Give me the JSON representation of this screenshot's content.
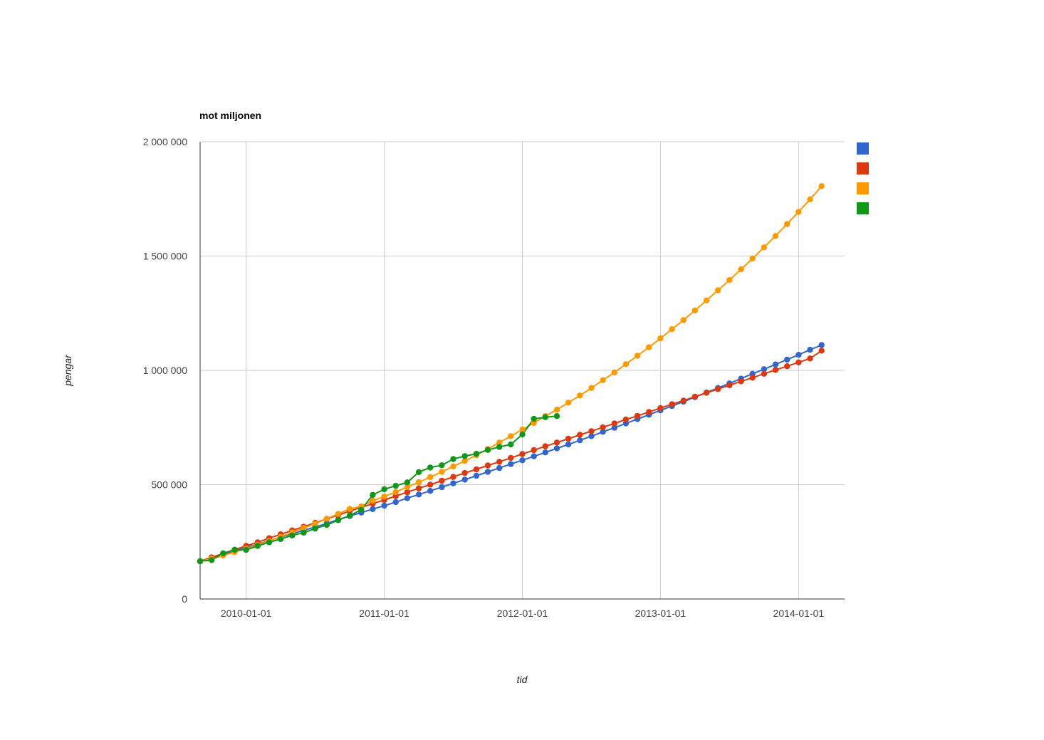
{
  "chart_data": {
    "type": "line",
    "title": "mot miljonen",
    "xlabel": "tid",
    "ylabel": "pengar",
    "x_tick_labels": [
      "2010-01-01",
      "2011-01-01",
      "2012-01-01",
      "2013-01-01",
      "2014-01-01"
    ],
    "y_tick_labels": [
      "0",
      "500 000",
      "1 000 000",
      "1 500 000",
      "2 000 000"
    ],
    "xlim": [
      "2009-09-01",
      "2014-05-01"
    ],
    "ylim": [
      0,
      2000000
    ],
    "grid": true,
    "legend_position": "right",
    "series": [
      {
        "color": "#3366cc",
        "x_start": "2009-09-01",
        "step_months": 1,
        "values": [
          165000,
          180000,
          195000,
          210000,
          225000,
          240000,
          255000,
          270000,
          285000,
          300000,
          315000,
          330000,
          347000,
          363000,
          378000,
          393000,
          408000,
          424000,
          441000,
          457000,
          473000,
          489000,
          506000,
          522000,
          539000,
          556000,
          573000,
          590000,
          607000,
          624000,
          641000,
          659000,
          676000,
          694000,
          712000,
          731000,
          749000,
          768000,
          787000,
          806000,
          825000,
          844000,
          863000,
          883000,
          903000,
          923000,
          943000,
          964000,
          985000,
          1005000,
          1026000,
          1047000,
          1068000,
          1090000,
          1111000
        ]
      },
      {
        "color": "#dc3912",
        "x_start": "2009-09-01",
        "step_months": 1,
        "values": [
          165000,
          182000,
          199000,
          216000,
          232000,
          248000,
          266000,
          283000,
          300000,
          316000,
          333000,
          350000,
          367000,
          384000,
          400000,
          417000,
          433000,
          450000,
          467000,
          484000,
          500000,
          517000,
          534000,
          551000,
          567000,
          584000,
          600000,
          617000,
          634000,
          651000,
          668000,
          684000,
          701000,
          718000,
          734000,
          751000,
          768000,
          785000,
          801000,
          818000,
          835000,
          852000,
          868000,
          885000,
          902000,
          918000,
          935000,
          952000,
          968000,
          985000,
          1002000,
          1018000,
          1035000,
          1052000,
          1086000
        ]
      },
      {
        "color": "#ff9900",
        "x_start": "2009-09-01",
        "step_months": 1,
        "values": [
          165000,
          176000,
          190000,
          205000,
          220000,
          237000,
          254000,
          272000,
          291000,
          310000,
          330000,
          351000,
          372000,
          394000,
          405000,
          430000,
          448000,
          468000,
          490000,
          511000,
          533000,
          556000,
          580000,
          604000,
          629000,
          656000,
          684000,
          712000,
          741000,
          770000,
          800000,
          828000,
          859000,
          890000,
          923000,
          957000,
          991000,
          1027000,
          1064000,
          1101000,
          1140000,
          1180000,
          1220000,
          1262000,
          1306000,
          1350000,
          1395000,
          1442000,
          1489000,
          1538000,
          1588000,
          1640000,
          1693000,
          1748000,
          1806000
        ]
      },
      {
        "color": "#109618",
        "x_start": "2009-09-01",
        "step_months": 1,
        "values": [
          165000,
          170000,
          200000,
          215000,
          215000,
          232000,
          248000,
          262000,
          278000,
          290000,
          308000,
          324000,
          345000,
          365000,
          390000,
          455000,
          480000,
          495000,
          510000,
          555000,
          575000,
          585000,
          612000,
          625000,
          635000,
          652000,
          665000,
          676000,
          720000,
          788000,
          795000,
          800000
        ]
      }
    ]
  }
}
